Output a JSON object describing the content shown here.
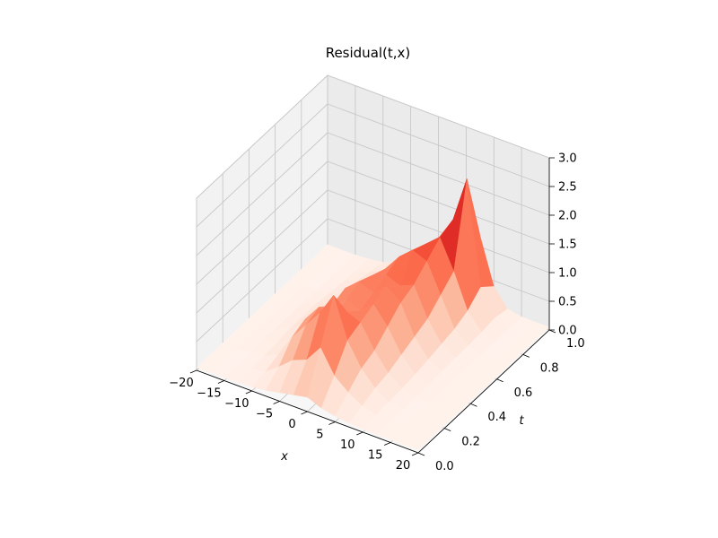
{
  "chart_data": {
    "type": "surface",
    "title": "Residual(t,x)",
    "xlabel": "x",
    "ylabel": "t",
    "zlabel": "",
    "xlim": [
      -20,
      20
    ],
    "ylim": [
      0.0,
      1.0
    ],
    "zlim": [
      0.0,
      3.0
    ],
    "x_ticks": [
      "−20",
      "−15",
      "−10",
      "−5",
      "0",
      "5",
      "10",
      "15",
      "20"
    ],
    "y_ticks": [
      "0.0",
      "0.2",
      "0.4",
      "0.6",
      "0.8",
      "1.0"
    ],
    "z_ticks": [
      "0.0",
      "0.5",
      "1.0",
      "1.5",
      "2.0",
      "2.5",
      "3.0"
    ],
    "colormap": "Reds",
    "grid": true,
    "x": [
      -20,
      -17.5,
      -15,
      -12.5,
      -10,
      -7.5,
      -5,
      -2.5,
      0,
      2.5,
      5,
      7.5,
      10,
      12.5,
      15,
      17.5,
      20
    ],
    "t": [
      0.0,
      0.1,
      0.2,
      0.3,
      0.4,
      0.5,
      0.6,
      0.7,
      0.8,
      0.9,
      1.0
    ],
    "z": [
      [
        0.05,
        0.05,
        0.05,
        0.06,
        0.07,
        0.1,
        0.15,
        0.2,
        0.25,
        0.15,
        0.1,
        0.07,
        0.05,
        0.05,
        0.05,
        0.05,
        0.05
      ],
      [
        0.05,
        0.05,
        0.06,
        0.08,
        0.12,
        0.3,
        0.5,
        0.6,
        0.9,
        0.5,
        0.3,
        0.15,
        0.08,
        0.05,
        0.05,
        0.05,
        0.05
      ],
      [
        0.05,
        0.05,
        0.06,
        0.1,
        0.2,
        0.6,
        0.9,
        1.2,
        1.6,
        0.9,
        0.5,
        0.25,
        0.1,
        0.06,
        0.05,
        0.05,
        0.05
      ],
      [
        0.05,
        0.05,
        0.07,
        0.12,
        0.25,
        0.7,
        1.0,
        0.9,
        1.1,
        1.0,
        0.6,
        0.3,
        0.12,
        0.06,
        0.05,
        0.05,
        0.05
      ],
      [
        0.05,
        0.05,
        0.07,
        0.15,
        0.3,
        0.6,
        0.8,
        1.0,
        0.9,
        1.1,
        0.8,
        0.4,
        0.15,
        0.07,
        0.05,
        0.05,
        0.05
      ],
      [
        0.05,
        0.05,
        0.07,
        0.15,
        0.3,
        0.5,
        0.9,
        1.1,
        1.0,
        1.2,
        1.0,
        0.5,
        0.2,
        0.08,
        0.05,
        0.05,
        0.05
      ],
      [
        0.05,
        0.05,
        0.07,
        0.15,
        0.25,
        0.4,
        0.8,
        1.0,
        1.1,
        1.0,
        1.1,
        0.6,
        0.25,
        0.1,
        0.05,
        0.05,
        0.05
      ],
      [
        0.05,
        0.05,
        0.06,
        0.12,
        0.2,
        0.35,
        0.6,
        0.9,
        1.2,
        1.4,
        1.3,
        0.8,
        0.3,
        0.1,
        0.05,
        0.05,
        0.05
      ],
      [
        0.05,
        0.05,
        0.06,
        0.1,
        0.2,
        0.3,
        0.5,
        0.8,
        1.1,
        1.3,
        1.5,
        1.0,
        0.4,
        0.12,
        0.06,
        0.05,
        0.05
      ],
      [
        0.05,
        0.05,
        0.06,
        0.08,
        0.15,
        0.25,
        0.4,
        0.6,
        0.9,
        1.2,
        1.6,
        2.4,
        0.6,
        0.15,
        0.06,
        0.05,
        0.05
      ],
      [
        0.05,
        0.05,
        0.05,
        0.07,
        0.1,
        0.2,
        0.3,
        0.4,
        0.6,
        0.9,
        1.0,
        1.2,
        0.4,
        0.1,
        0.05,
        0.05,
        0.05
      ]
    ]
  }
}
